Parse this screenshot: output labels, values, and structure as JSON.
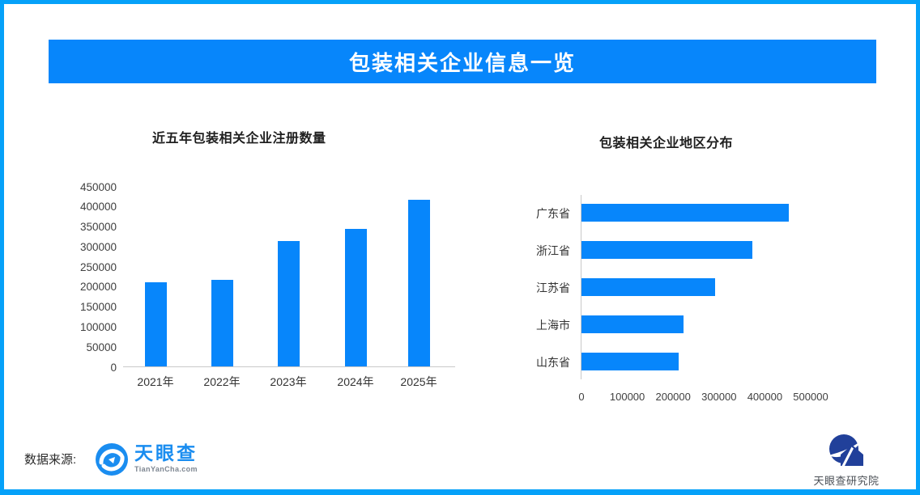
{
  "banner": {
    "title": "包装相关企业信息一览"
  },
  "chart_data": [
    {
      "type": "bar",
      "title": "近五年包装相关企业注册数量",
      "categories": [
        "2021年",
        "2022年",
        "2023年",
        "2024年",
        "2025年"
      ],
      "values": [
        210000,
        216000,
        312000,
        343000,
        416000
      ],
      "xlabel": "",
      "ylabel": "",
      "ylim": [
        0,
        450000
      ],
      "yticks": [
        "450000",
        "400000",
        "350000",
        "300000",
        "250000",
        "200000",
        "150000",
        "100000",
        "50000",
        "0"
      ],
      "grid": false,
      "legend": "none",
      "bar_color": "#0786fb"
    },
    {
      "type": "bar-horizontal",
      "title": "包装相关企业地区分布",
      "categories": [
        "广东省",
        "浙江省",
        "江苏省",
        "上海市",
        "山东省"
      ],
      "values": [
        452000,
        372000,
        292000,
        223000,
        212000
      ],
      "xlabel": "",
      "ylabel": "",
      "xlim": [
        0,
        500000
      ],
      "xticks": [
        "0",
        "100000",
        "200000",
        "300000",
        "400000",
        "500000"
      ],
      "grid": false,
      "legend": "none",
      "bar_color": "#0786fb"
    }
  ],
  "footer": {
    "source_label": "数据来源:",
    "tyc_name": "天眼查",
    "tyc_sub": "TianYanCha.com"
  },
  "research": {
    "name": "天眼查研究院"
  },
  "colors": {
    "accent": "#0786fb",
    "frame_border": "#05a1f9",
    "axis_line": "#c9c9c9",
    "tick_text": "#404040",
    "title_text": "#1f1f1f",
    "tyc_blue": "#1a8df0",
    "research_navy": "#21409a"
  }
}
